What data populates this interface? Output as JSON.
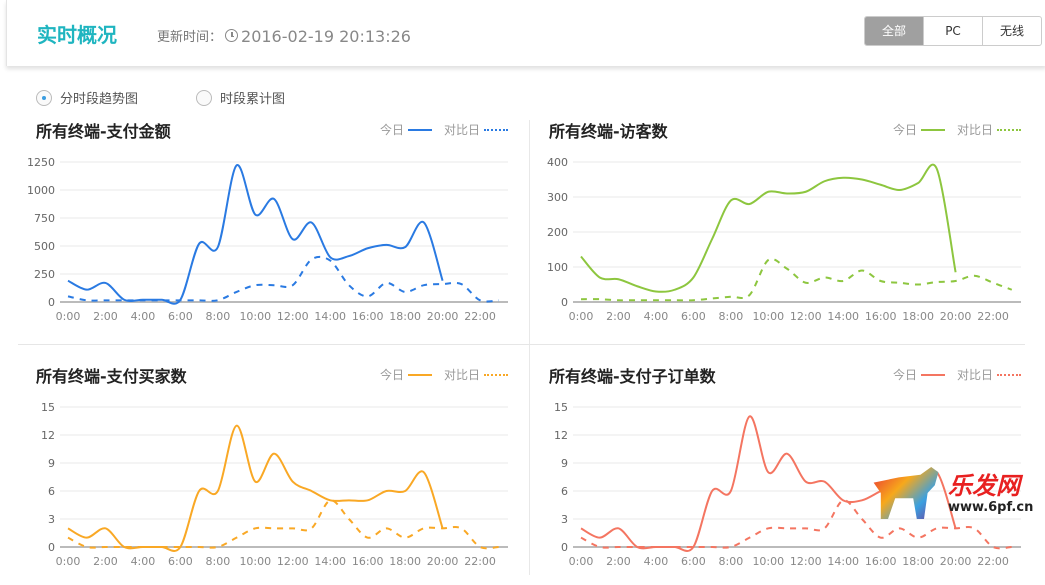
{
  "header": {
    "title": "实时概况",
    "update_label": "更新时间：",
    "update_time": "2016-02-19 20:13:26",
    "segments": [
      "全部",
      "PC",
      "无线"
    ],
    "active_segment": "全部"
  },
  "view_options": [
    {
      "label": "分时段趋势图",
      "selected": true
    },
    {
      "label": "时段累计图",
      "selected": false
    }
  ],
  "legend": {
    "today": "今日",
    "compare": "对比日"
  },
  "watermark": {
    "brand": "乐发网",
    "url": "www.6pf.cn"
  },
  "chart_data": [
    {
      "type": "line",
      "title": "所有终端-支付金额",
      "color": "#2a7ae2",
      "ylim": [
        0,
        1250
      ],
      "yticks": [
        "0",
        "250",
        "500",
        "750",
        "1000",
        "1250"
      ],
      "xticks": [
        "0:00",
        "2:00",
        "4:00",
        "6:00",
        "8:00",
        "10:00",
        "12:00",
        "14:00",
        "16:00",
        "18:00",
        "20:00",
        "22:00"
      ],
      "series": [
        {
          "name": "今日",
          "values": [
            190,
            110,
            170,
            20,
            20,
            20,
            20,
            520,
            490,
            1220,
            780,
            920,
            560,
            710,
            400,
            410,
            480,
            510,
            490,
            710,
            190
          ]
        },
        {
          "name": "对比日",
          "values": [
            50,
            15,
            15,
            15,
            15,
            15,
            15,
            15,
            15,
            90,
            150,
            150,
            150,
            380,
            370,
            150,
            50,
            170,
            90,
            150,
            160,
            160,
            15,
            15
          ]
        }
      ]
    },
    {
      "type": "line",
      "title": "所有终端-访客数",
      "color": "#8dc63f",
      "ylim": [
        0,
        400
      ],
      "yticks": [
        "0",
        "100",
        "200",
        "300",
        "400"
      ],
      "xticks": [
        "0:00",
        "2:00",
        "4:00",
        "6:00",
        "8:00",
        "10:00",
        "12:00",
        "14:00",
        "16:00",
        "18:00",
        "20:00",
        "22:00"
      ],
      "series": [
        {
          "name": "今日",
          "values": [
            130,
            70,
            65,
            45,
            30,
            35,
            70,
            180,
            290,
            280,
            315,
            310,
            315,
            345,
            355,
            350,
            335,
            320,
            340,
            380,
            85
          ]
        },
        {
          "name": "对比日",
          "values": [
            8,
            8,
            5,
            5,
            5,
            5,
            5,
            10,
            15,
            20,
            120,
            95,
            55,
            70,
            60,
            90,
            60,
            55,
            50,
            57,
            60,
            75,
            55,
            35
          ]
        }
      ]
    },
    {
      "type": "line",
      "title": "所有终端-支付买家数",
      "color": "#f9a825",
      "ylim": [
        0,
        15
      ],
      "yticks": [
        "0",
        "3",
        "6",
        "9",
        "12",
        "15"
      ],
      "xticks": [
        "0:00",
        "2:00",
        "4:00",
        "6:00",
        "8:00",
        "10:00",
        "12:00",
        "14:00",
        "16:00",
        "18:00",
        "20:00",
        "22:00"
      ],
      "series": [
        {
          "name": "今日",
          "values": [
            2,
            1,
            2,
            0,
            0,
            0,
            0,
            6,
            6,
            13,
            7,
            10,
            7,
            6,
            5,
            5,
            5,
            6,
            6,
            8,
            2
          ]
        },
        {
          "name": "对比日",
          "values": [
            1,
            0,
            0,
            0,
            0,
            0,
            0,
            0,
            0,
            1,
            2,
            2,
            2,
            2,
            5,
            3,
            1,
            2,
            1,
            2,
            2,
            2,
            0,
            0
          ]
        }
      ]
    },
    {
      "type": "line",
      "title": "所有终端-支付子订单数",
      "color": "#f47561",
      "ylim": [
        0,
        15
      ],
      "yticks": [
        "0",
        "3",
        "6",
        "9",
        "12",
        "15"
      ],
      "xticks": [
        "0:00",
        "2:00",
        "4:00",
        "6:00",
        "8:00",
        "10:00",
        "12:00",
        "14:00",
        "16:00",
        "18:00",
        "20:00",
        "22:00"
      ],
      "series": [
        {
          "name": "今日",
          "values": [
            2,
            1,
            2,
            0,
            0,
            0,
            0,
            6,
            6,
            14,
            8,
            10,
            7,
            7,
            5,
            5,
            6,
            7,
            6,
            8,
            2
          ]
        },
        {
          "name": "对比日",
          "values": [
            1,
            0,
            0,
            0,
            0,
            0,
            0,
            0,
            0,
            1,
            2,
            2,
            2,
            2,
            5,
            3,
            1,
            2,
            1,
            2,
            2,
            2,
            0,
            0
          ]
        }
      ]
    }
  ]
}
